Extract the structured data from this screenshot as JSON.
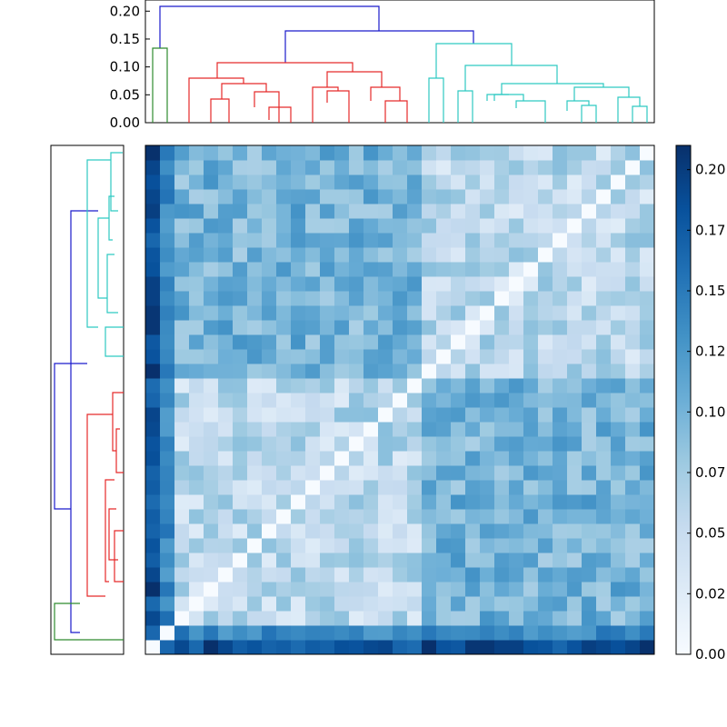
{
  "chart_data": [
    {
      "type": "dendrogram",
      "panel": "top",
      "orientation": "top",
      "ylim": [
        0,
        0.22
      ],
      "yticks": [
        "0.00",
        "0.05",
        "0.10",
        "0.15",
        "0.20"
      ],
      "cluster_colors": {
        "green": "#2e8b2e",
        "red": "#e52a2a",
        "cyan": "#2ec9c2",
        "blue": "#1a1acc"
      },
      "merge_heights": {
        "root": 0.21,
        "upper": 0.166,
        "red_cluster": 0.111,
        "cyan_cluster": 0.145,
        "green_cluster": 0.133
      }
    },
    {
      "type": "dendrogram",
      "panel": "left",
      "orientation": "left",
      "clusters": [
        "cyan",
        "red",
        "green",
        "blue"
      ]
    },
    {
      "type": "heatmap",
      "size": 35,
      "colormap": "Blues",
      "vmin": 0.0,
      "vmax": 0.21,
      "note_values": "35x35 distance matrix, zero diagonal (bottom-left to top-right)"
    },
    {
      "type": "colorbar",
      "ticks": [
        "0.00",
        "0.02",
        "0.05",
        "0.07",
        "0.10",
        "0.12",
        "0.15",
        "0.17",
        "0.20"
      ],
      "tick_values": [
        0.0,
        0.025,
        0.05,
        0.075,
        0.1,
        0.125,
        0.15,
        0.175,
        0.2
      ]
    }
  ]
}
